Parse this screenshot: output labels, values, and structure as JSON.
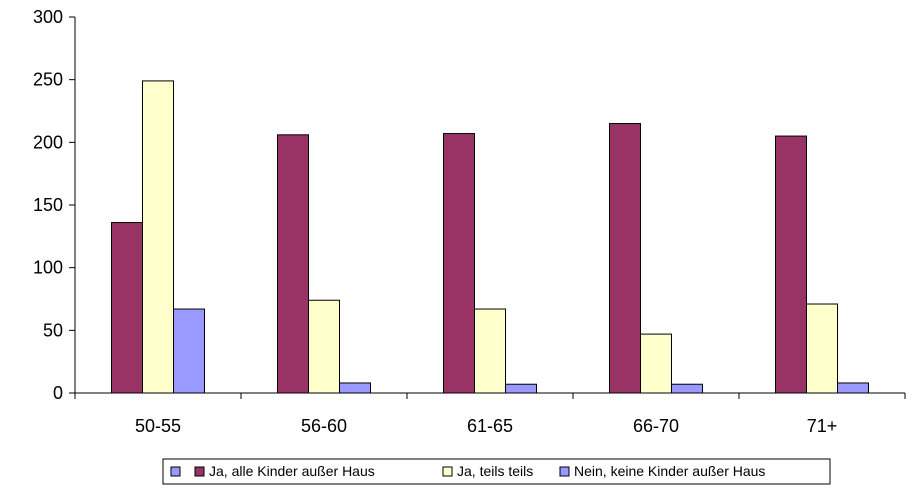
{
  "chart_data": {
    "type": "bar",
    "categories": [
      "50-55",
      "56-60",
      "61-65",
      "66-70",
      "71+"
    ],
    "series": [
      {
        "name": "Ja, alle Kinder außer Haus",
        "color": "#993366",
        "values": [
          136,
          206,
          207,
          215,
          205
        ]
      },
      {
        "name": "Ja, teils teils",
        "color": "#FFFFCC",
        "values": [
          249,
          74,
          67,
          47,
          71
        ]
      },
      {
        "name": "Nein, keine Kinder außer Haus",
        "color": "#9999FF",
        "values": [
          67,
          8,
          7,
          7,
          8
        ]
      }
    ],
    "ylim": [
      0,
      300
    ],
    "yticks": [
      0,
      50,
      100,
      150,
      200,
      250,
      300
    ],
    "legend_position": "bottom",
    "grid": false
  }
}
